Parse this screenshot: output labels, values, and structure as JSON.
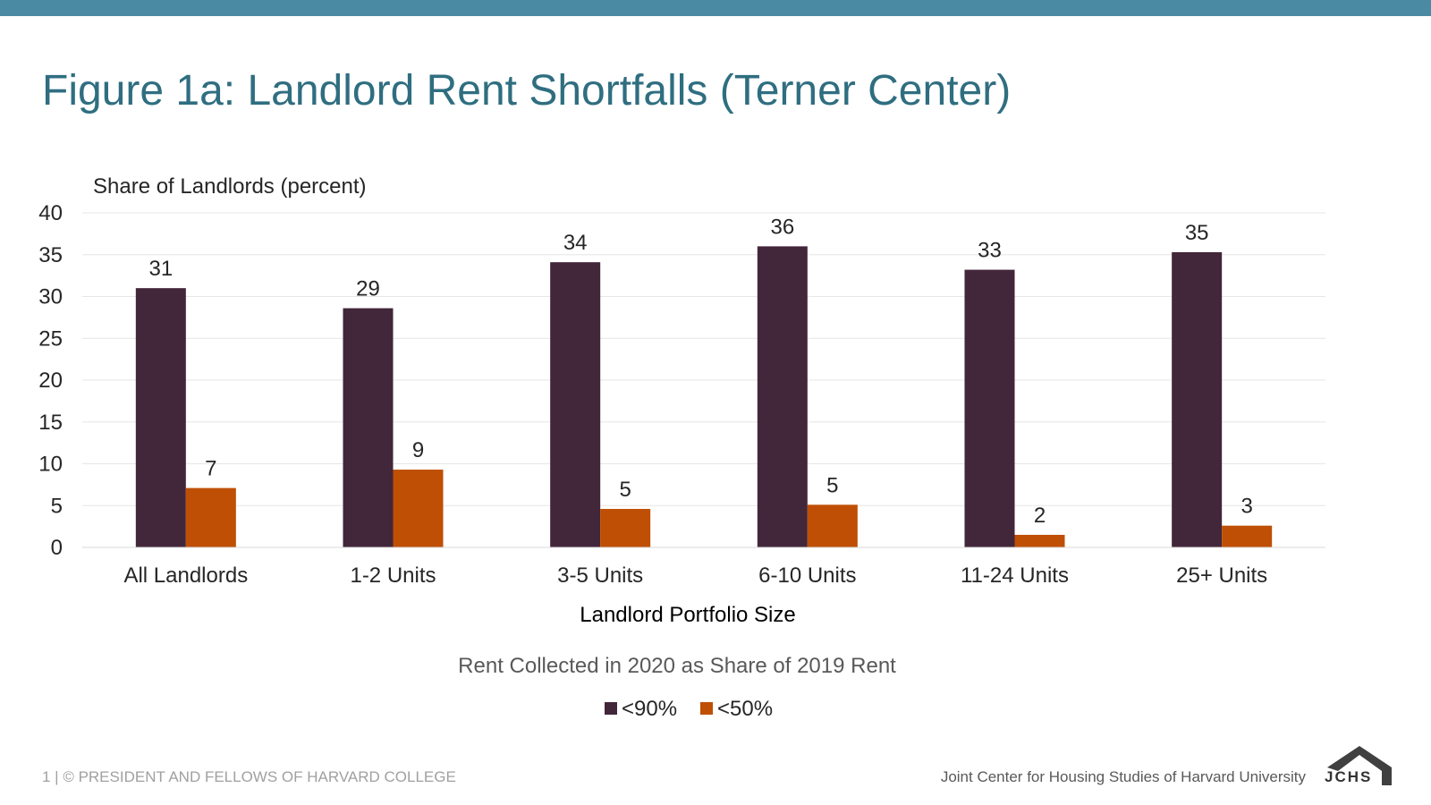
{
  "title": "Figure 1a: Landlord Rent Shortfalls (Terner Center)",
  "colors": {
    "accent_bar": "#4a8ba3",
    "title": "#2f6e80"
  },
  "footer": {
    "left": "1 | © PRESIDENT AND FELLOWS OF HARVARD COLLEGE",
    "right": "Joint Center for Housing Studies of Harvard University",
    "logo": "JCHS",
    "logo_icon": "house-roof-icon"
  },
  "chart_data": {
    "type": "bar",
    "ylabel": "Share of Landlords (percent)",
    "xlabel": "Landlord Portfolio Size",
    "legend_title": "Rent Collected in 2020 as Share of 2019 Rent",
    "legend_position": "bottom",
    "ylim": [
      0,
      40
    ],
    "yticks": [
      0,
      5,
      10,
      15,
      20,
      25,
      30,
      35,
      40
    ],
    "grid": true,
    "categories": [
      "All Landlords",
      "1-2 Units",
      "3-5 Units",
      "6-10 Units",
      "11-24 Units",
      "25+ Units"
    ],
    "series": [
      {
        "name": "<90%",
        "color": "#42263a",
        "values": [
          31,
          28.6,
          34.1,
          36,
          33.2,
          35.3
        ],
        "labels": [
          "31",
          "29",
          "34",
          "36",
          "33",
          "35"
        ]
      },
      {
        "name": "<50%",
        "color": "#bf4f04",
        "values": [
          7.1,
          9.3,
          4.6,
          5.1,
          1.5,
          2.6
        ],
        "labels": [
          "7",
          "9",
          "5",
          "5",
          "2",
          "3"
        ]
      }
    ]
  }
}
